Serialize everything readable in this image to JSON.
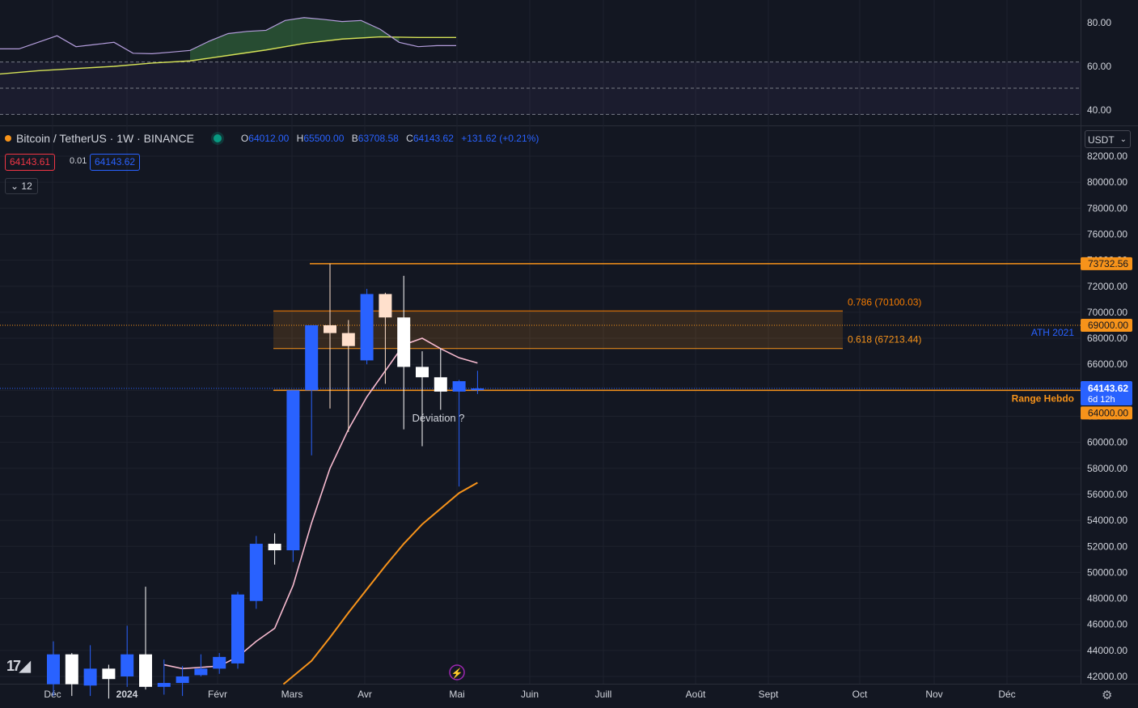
{
  "legend": {
    "symbol": "Bitcoin / TetherUS · 1W · BINANCE",
    "o_label": "O",
    "o": "64012.00",
    "h_label": "H",
    "h": "65500.00",
    "l_label": "B",
    "l": "63708.58",
    "c_label": "C",
    "c": "64143.62",
    "change": "+131.62 (+0.21%)"
  },
  "bid": "64143.61",
  "spread": "0.01",
  "ask": "64143.62",
  "collapsed_count": "12",
  "currency": "USDT",
  "colors": {
    "up": "#2962ff",
    "down": "#ffffff",
    "accent": "#f7931a",
    "ma_fast": "#f7c6cf",
    "ma_slow": "#f7931a"
  },
  "icons": {
    "logo": "tradingview-logo-icon",
    "settings": "gear-icon",
    "alert": "lightning-icon"
  },
  "chart_data": [
    {
      "type": "line",
      "pane": "oscillator",
      "y_ticks": [
        "80.00",
        "60.00",
        "40.00"
      ],
      "ylim": [
        38,
        92
      ],
      "series": [
        {
          "values": [
            [
              0,
              68
            ],
            [
              1,
              68
            ],
            [
              2,
              71
            ],
            [
              3,
              74
            ],
            [
              4,
              69
            ],
            [
              5,
              70
            ],
            [
              6,
              71
            ],
            [
              7,
              66
            ],
            [
              8,
              65.8
            ],
            [
              9,
              66.5
            ],
            [
              10,
              67.3
            ],
            [
              11,
              71.5
            ],
            [
              12,
              75
            ],
            [
              13,
              76
            ],
            [
              14,
              76.5
            ],
            [
              15,
              81
            ],
            [
              16,
              82.3
            ],
            [
              17,
              81.5
            ],
            [
              18,
              80.5
            ],
            [
              19,
              81
            ],
            [
              20,
              77
            ],
            [
              21,
              71
            ],
            [
              22,
              69
            ],
            [
              23,
              69.5
            ],
            [
              24,
              69.5
            ]
          ]
        },
        {
          "values": [
            [
              0,
              56.5
            ],
            [
              2,
              58
            ],
            [
              4,
              59
            ],
            [
              6,
              60
            ],
            [
              8,
              61.5
            ],
            [
              10,
              62.5
            ],
            [
              12,
              65
            ],
            [
              14,
              67.5
            ],
            [
              16,
              70.5
            ],
            [
              18,
              72.5
            ],
            [
              20,
              73.5
            ],
            [
              22,
              73.2
            ],
            [
              24,
              73.2
            ]
          ]
        }
      ],
      "fill_zones": [
        [
          0.5,
          0.78
        ]
      ],
      "reference_lines": [
        62,
        50,
        38
      ]
    },
    {
      "type": "candlestick",
      "pane": "price",
      "x_ticks": [
        "Déc",
        "2024",
        "Févr",
        "Mars",
        "Avr",
        "Mai",
        "Juin",
        "Juill",
        "Août",
        "Sept",
        "Oct",
        "Nov",
        "Déc"
      ],
      "y_ticks": [
        "82000.00",
        "80000.00",
        "78000.00",
        "76000.00",
        "74000.00",
        "72000.00",
        "70000.00",
        "68000.00",
        "66000.00",
        "64000.00",
        "62000.00",
        "60000.00",
        "58000.00",
        "56000.00",
        "54000.00",
        "52000.00",
        "50000.00",
        "48000.00",
        "46000.00",
        "44000.00",
        "42000.00"
      ],
      "ylim": [
        41500,
        82800
      ],
      "candles": [
        {
          "o": 41400,
          "h": 44700,
          "l": 40500,
          "c": 43700
        },
        {
          "o": 43700,
          "h": 43800,
          "l": 40500,
          "c": 41400
        },
        {
          "o": 41300,
          "h": 44400,
          "l": 40500,
          "c": 42600
        },
        {
          "o": 42600,
          "h": 42900,
          "l": 40300,
          "c": 41800
        },
        {
          "o": 42000,
          "h": 45900,
          "l": 41200,
          "c": 43700
        },
        {
          "o": 43700,
          "h": 48900,
          "l": 41000,
          "c": 41200
        },
        {
          "o": 41200,
          "h": 43300,
          "l": 40600,
          "c": 41500
        },
        {
          "o": 41500,
          "h": 42800,
          "l": 40500,
          "c": 42000
        },
        {
          "o": 42100,
          "h": 43700,
          "l": 42000,
          "c": 42600
        },
        {
          "o": 42600,
          "h": 43800,
          "l": 42200,
          "c": 43500
        },
        {
          "o": 43000,
          "h": 48500,
          "l": 42600,
          "c": 48300
        },
        {
          "o": 47800,
          "h": 52800,
          "l": 47200,
          "c": 52200
        },
        {
          "o": 52200,
          "h": 53000,
          "l": 50600,
          "c": 51700
        },
        {
          "o": 51700,
          "h": 64000,
          "l": 50800,
          "c": 64000
        },
        {
          "o": 64000,
          "h": 69000,
          "l": 59000,
          "c": 69000
        },
        {
          "o": 69000,
          "h": 73732,
          "l": 62600,
          "c": 68400
        },
        {
          "o": 68400,
          "h": 69400,
          "l": 60800,
          "c": 67400
        },
        {
          "o": 66300,
          "h": 71800,
          "l": 66000,
          "c": 71400
        },
        {
          "o": 71400,
          "h": 71500,
          "l": 64500,
          "c": 69600
        },
        {
          "o": 69600,
          "h": 72800,
          "l": 61000,
          "c": 65800
        },
        {
          "o": 65800,
          "h": 67000,
          "l": 59700,
          "c": 65000
        },
        {
          "o": 65000,
          "h": 67200,
          "l": 62500,
          "c": 63900
        },
        {
          "o": 63900,
          "h": 64800,
          "l": 56600,
          "c": 64700
        },
        {
          "o": 64012,
          "h": 65500,
          "l": 63708,
          "c": 64143
        }
      ],
      "ma_fast": [
        [
          6,
          42900
        ],
        [
          7,
          42600
        ],
        [
          8,
          42700
        ],
        [
          9,
          42800
        ],
        [
          10,
          43500
        ],
        [
          11,
          44700
        ],
        [
          12,
          45700
        ],
        [
          13,
          49000
        ],
        [
          14,
          53800
        ],
        [
          15,
          58000
        ],
        [
          16,
          61000
        ],
        [
          17,
          63500
        ],
        [
          18,
          65500
        ],
        [
          19,
          67500
        ],
        [
          20,
          68000
        ],
        [
          21,
          67200
        ],
        [
          22,
          66500
        ],
        [
          23,
          66100
        ]
      ],
      "ma_slow": [
        [
          13,
          41400
        ],
        [
          14,
          43200
        ],
        [
          15,
          45000
        ],
        [
          16,
          46900
        ],
        [
          17,
          48700
        ],
        [
          18,
          50500
        ],
        [
          19,
          52200
        ],
        [
          20,
          53700
        ],
        [
          21,
          54900
        ],
        [
          22,
          56100
        ],
        [
          23,
          56900
        ]
      ],
      "levels": [
        {
          "price": 73732.56,
          "label": "73732.56"
        },
        {
          "price": 69000,
          "label": "69000.00",
          "name": "ATH 2021"
        },
        {
          "price": 64143.62,
          "label": "64143.62",
          "countdown": "6d 12h"
        },
        {
          "price": 64000,
          "label": "64000.00",
          "name": "Range Hebdo"
        }
      ],
      "fib_zone": {
        "top": 70100.03,
        "bottom": 67213.44,
        "top_label": "0.786 (70100.03)",
        "bottom_label": "0.618 (67213.44)"
      },
      "annotations": [
        "Déviation ?"
      ]
    }
  ]
}
